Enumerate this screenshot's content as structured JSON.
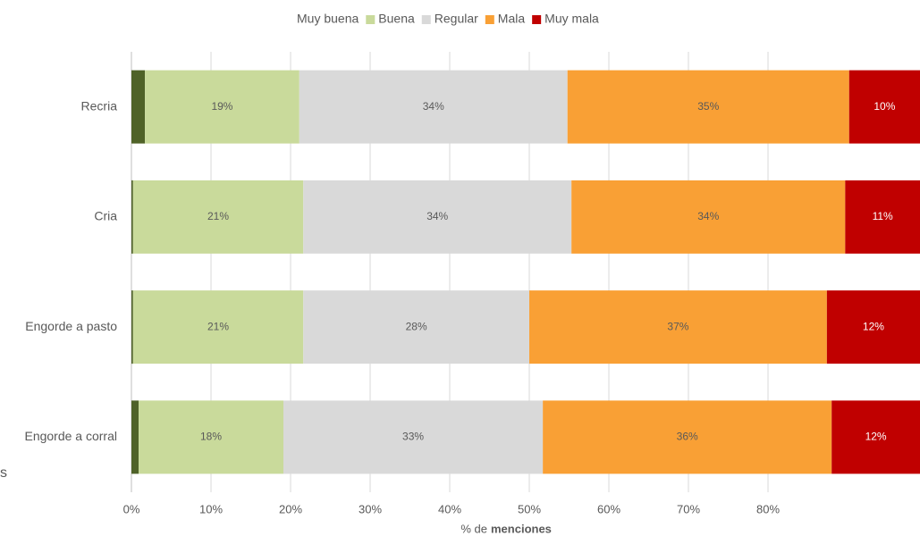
{
  "chart_data": {
    "type": "stacked_barh",
    "categories": [
      "Recria",
      "Cria",
      "Engorde a pasto",
      "Engorde a corral"
    ],
    "series": [
      {
        "name": "Muy buena",
        "color": "#4f6228",
        "values": [
          1.7,
          0.2,
          0.2,
          0.9
        ]
      },
      {
        "name": "Buena",
        "color": "#c9da9b",
        "values": [
          19.4,
          21.4,
          21.4,
          18.2
        ],
        "value_labels": [
          "19%",
          "21%",
          "21%",
          "18%"
        ]
      },
      {
        "name": "Regular",
        "color": "#d9d9d9",
        "values": [
          33.7,
          33.7,
          28.4,
          32.6
        ],
        "value_labels": [
          "34%",
          "34%",
          "28%",
          "33%"
        ]
      },
      {
        "name": "Mala",
        "color": "#f9a035",
        "values": [
          35.4,
          34.4,
          37.4,
          36.3
        ],
        "value_labels": [
          "35%",
          "34%",
          "37%",
          "36%"
        ]
      },
      {
        "name": "Muy mala",
        "color": "#c00000",
        "values": [
          10.2,
          10.6,
          12.4,
          12.1
        ],
        "value_labels": [
          "10%",
          "11%",
          "12%",
          "12%"
        ]
      }
    ],
    "xlim": [
      0,
      100
    ],
    "xticks": [
      {
        "value": 0,
        "label": "0%"
      },
      {
        "value": 10,
        "label": "10%"
      },
      {
        "value": 20,
        "label": "20%"
      },
      {
        "value": 30,
        "label": "30%"
      },
      {
        "value": 40,
        "label": "40%"
      },
      {
        "value": 50,
        "label": "50%"
      },
      {
        "value": 60,
        "label": "60%"
      },
      {
        "value": 70,
        "label": "70%"
      },
      {
        "value": 80,
        "label": "80%"
      }
    ],
    "xlabel": {
      "prefix": "% de",
      "bold": "menciones"
    },
    "grid": true,
    "legend": "top",
    "annotations": [
      "s"
    ]
  }
}
